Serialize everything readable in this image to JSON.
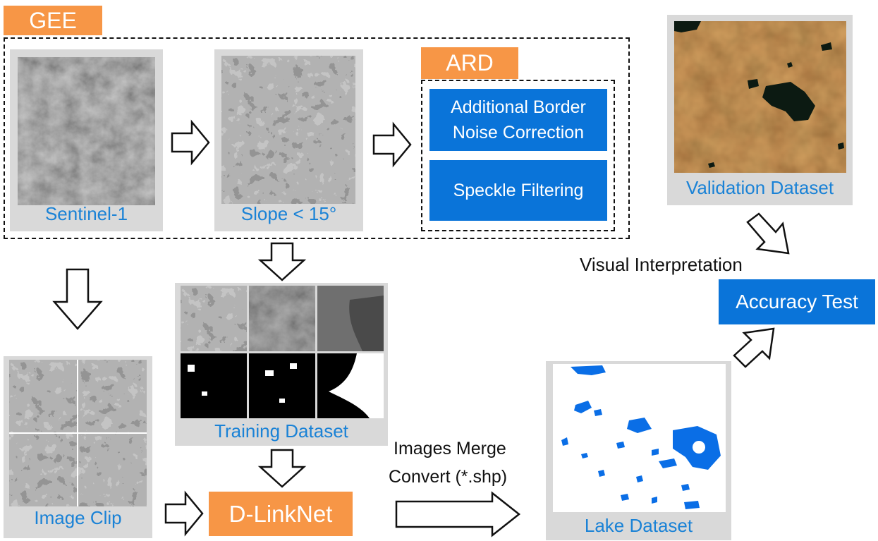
{
  "gee_label": "GEE",
  "ard_label": "ARD",
  "sentinel": {
    "caption": "Sentinel-1"
  },
  "slope": {
    "caption": "Slope < 15°"
  },
  "ard_steps": [
    {
      "label": "Additional Border Noise Correction"
    },
    {
      "label": "Speckle Filtering"
    }
  ],
  "image_clip": {
    "caption": "Image Clip"
  },
  "training": {
    "caption": "Training Dataset"
  },
  "dlinknet_label": "D-LinkNet",
  "merge_label_line1": "Images Merge",
  "merge_label_line2": "Convert (*.shp)",
  "lake": {
    "caption": "Lake Dataset"
  },
  "validation": {
    "caption": "Validation Dataset"
  },
  "visual_label": "Visual Interpretation",
  "accuracy_label": "Accuracy Test",
  "colors": {
    "orange": "#f79646",
    "blue_box": "#0a74d9",
    "caption_blue": "#1a82d6",
    "lake_blue": "#0a6ee6",
    "panel_gray": "#d9d9d9"
  }
}
